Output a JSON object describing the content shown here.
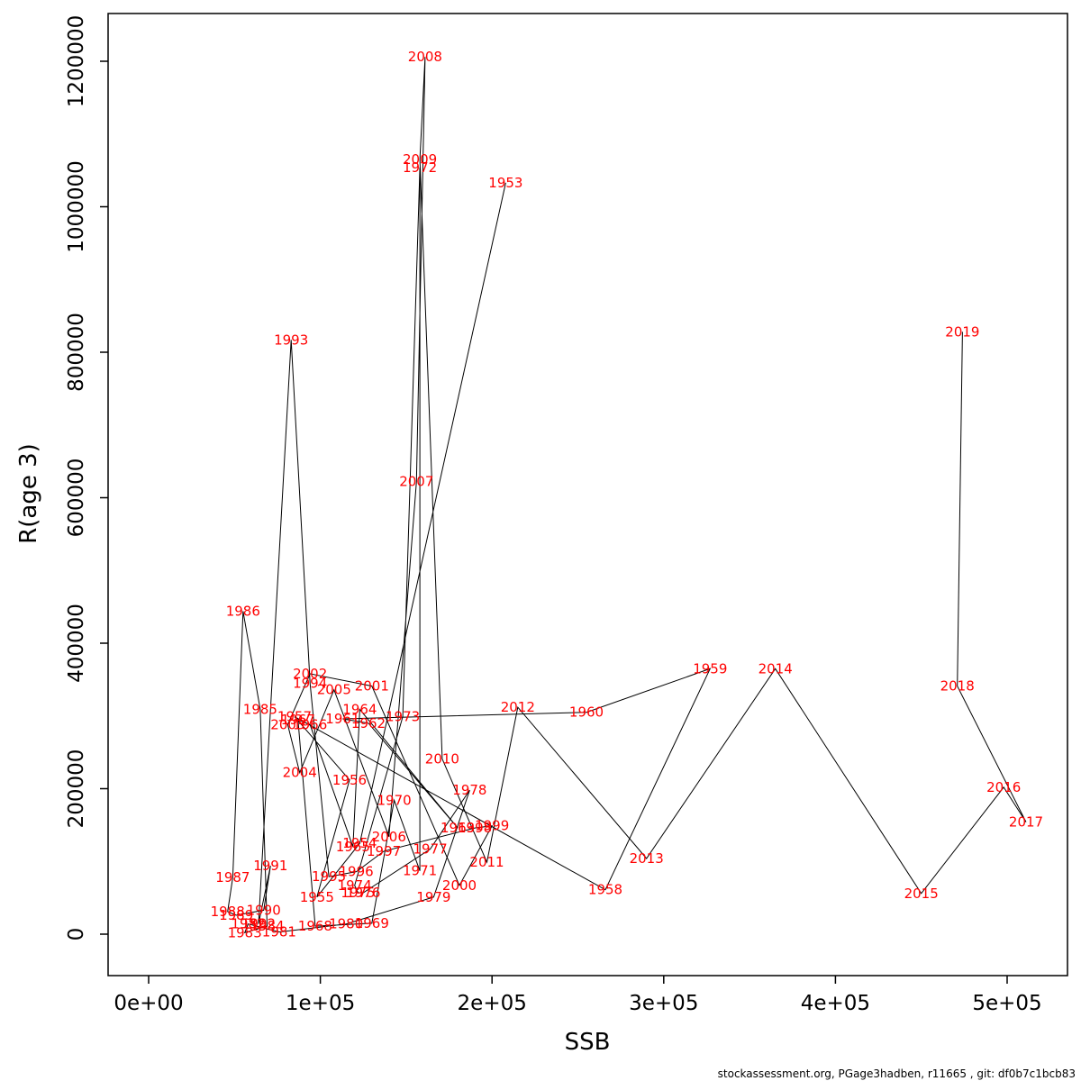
{
  "footer": "stockassessment.org, PGage3hadben, r11665 , git: df0b7c1bcb83",
  "chart_data": {
    "type": "scatter",
    "title": "",
    "xlabel": "SSB",
    "ylabel": "R(age 3)",
    "xlim": [
      0,
      520000
    ],
    "ylim": [
      0,
      1250000
    ],
    "grid": false,
    "legend": "none",
    "label_color": "#ff0000",
    "line_color": "#000000",
    "x_ticks": [
      0,
      100000,
      200000,
      300000,
      400000,
      500000
    ],
    "x_tick_labels": [
      "0e+00",
      "1e+05",
      "2e+05",
      "3e+05",
      "4e+05",
      "5e+05"
    ],
    "y_ticks": [
      0,
      200000,
      400000,
      600000,
      800000,
      1000000,
      1200000
    ],
    "y_tick_labels": [
      "0",
      "200000",
      "400000",
      "600000",
      "800000",
      "1000000",
      "1200000"
    ],
    "points": [
      {
        "year": "1953",
        "ssb": 208000,
        "r": 1033000
      },
      {
        "year": "1954",
        "ssb": 123000,
        "r": 125000
      },
      {
        "year": "1955",
        "ssb": 98000,
        "r": 51000
      },
      {
        "year": "1956",
        "ssb": 117000,
        "r": 212000
      },
      {
        "year": "1957",
        "ssb": 85000,
        "r": 299000
      },
      {
        "year": "1958",
        "ssb": 266000,
        "r": 61000
      },
      {
        "year": "1959",
        "ssb": 327000,
        "r": 365000
      },
      {
        "year": "1960",
        "ssb": 255000,
        "r": 305000
      },
      {
        "year": "1961",
        "ssb": 113000,
        "r": 296000
      },
      {
        "year": "1962",
        "ssb": 128000,
        "r": 290000
      },
      {
        "year": "1963",
        "ssb": 180000,
        "r": 146000
      },
      {
        "year": "1964",
        "ssb": 123000,
        "r": 309000
      },
      {
        "year": "1965",
        "ssb": 119000,
        "r": 120000
      },
      {
        "year": "1966",
        "ssb": 94000,
        "r": 288000
      },
      {
        "year": "1967",
        "ssb": 87000,
        "r": 295000
      },
      {
        "year": "1968",
        "ssb": 97000,
        "r": 11000
      },
      {
        "year": "1969",
        "ssb": 130000,
        "r": 15000
      },
      {
        "year": "1970",
        "ssb": 143000,
        "r": 184000
      },
      {
        "year": "1971",
        "ssb": 158000,
        "r": 87000
      },
      {
        "year": "1972",
        "ssb": 158000,
        "r": 1054000
      },
      {
        "year": "1973",
        "ssb": 148000,
        "r": 299000
      },
      {
        "year": "1974",
        "ssb": 120000,
        "r": 67000
      },
      {
        "year": "1975",
        "ssb": 122000,
        "r": 57000
      },
      {
        "year": "1976",
        "ssb": 125000,
        "r": 57000
      },
      {
        "year": "1977",
        "ssb": 164000,
        "r": 117000
      },
      {
        "year": "1978",
        "ssb": 187000,
        "r": 198000
      },
      {
        "year": "1979",
        "ssb": 166000,
        "r": 51000
      },
      {
        "year": "1980",
        "ssb": 115000,
        "r": 14000
      },
      {
        "year": "1981",
        "ssb": 76000,
        "r": 3000
      },
      {
        "year": "1982",
        "ssb": 58000,
        "r": 14000
      },
      {
        "year": "1983",
        "ssb": 56000,
        "r": 2000
      },
      {
        "year": "1984",
        "ssb": 69000,
        "r": 11000
      },
      {
        "year": "1985",
        "ssb": 65000,
        "r": 309000
      },
      {
        "year": "1986",
        "ssb": 55000,
        "r": 444000
      },
      {
        "year": "1987",
        "ssb": 49000,
        "r": 78000
      },
      {
        "year": "1988",
        "ssb": 46000,
        "r": 31000
      },
      {
        "year": "1989",
        "ssb": 51000,
        "r": 26000
      },
      {
        "year": "1990",
        "ssb": 67000,
        "r": 33000
      },
      {
        "year": "1991",
        "ssb": 71000,
        "r": 94000
      },
      {
        "year": "1992",
        "ssb": 64000,
        "r": 14000
      },
      {
        "year": "1993",
        "ssb": 83000,
        "r": 817000
      },
      {
        "year": "1994",
        "ssb": 94000,
        "r": 345000
      },
      {
        "year": "1995",
        "ssb": 105000,
        "r": 79000
      },
      {
        "year": "1996",
        "ssb": 121000,
        "r": 86000
      },
      {
        "year": "1997",
        "ssb": 137000,
        "r": 114000
      },
      {
        "year": "1998",
        "ssb": 190000,
        "r": 146000
      },
      {
        "year": "1999",
        "ssb": 200000,
        "r": 149000
      },
      {
        "year": "2000",
        "ssb": 181000,
        "r": 67000
      },
      {
        "year": "2001",
        "ssb": 130000,
        "r": 341000
      },
      {
        "year": "2002",
        "ssb": 94000,
        "r": 358000
      },
      {
        "year": "2003",
        "ssb": 81000,
        "r": 288000
      },
      {
        "year": "2004",
        "ssb": 88000,
        "r": 222000
      },
      {
        "year": "2005",
        "ssb": 108000,
        "r": 336000
      },
      {
        "year": "2006",
        "ssb": 140000,
        "r": 134000
      },
      {
        "year": "2007",
        "ssb": 156000,
        "r": 622000
      },
      {
        "year": "2008",
        "ssb": 161000,
        "r": 1206000
      },
      {
        "year": "2009",
        "ssb": 158000,
        "r": 1065000
      },
      {
        "year": "2010",
        "ssb": 171000,
        "r": 241000
      },
      {
        "year": "2011",
        "ssb": 197000,
        "r": 99000
      },
      {
        "year": "2012",
        "ssb": 215000,
        "r": 312000
      },
      {
        "year": "2013",
        "ssb": 290000,
        "r": 104000
      },
      {
        "year": "2014",
        "ssb": 365000,
        "r": 365000
      },
      {
        "year": "2015",
        "ssb": 450000,
        "r": 56000
      },
      {
        "year": "2016",
        "ssb": 498000,
        "r": 202000
      },
      {
        "year": "2017",
        "ssb": 511000,
        "r": 154000
      },
      {
        "year": "2018",
        "ssb": 471000,
        "r": 341000
      },
      {
        "year": "2019",
        "ssb": 474000,
        "r": 828000
      }
    ]
  }
}
